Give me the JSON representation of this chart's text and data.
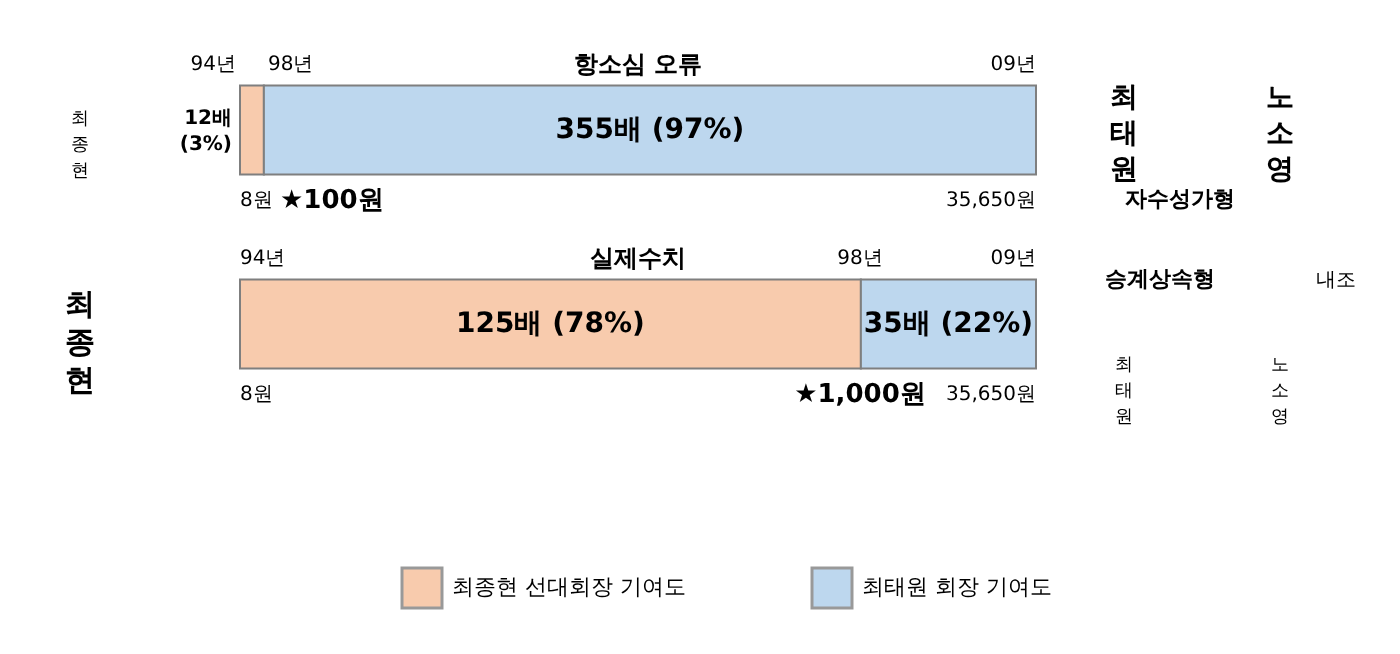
{
  "chart_data": {
    "type": "bar",
    "orientation": "horizontal",
    "stacked": true,
    "categories": [
      null,
      null
    ],
    "xlim": [
      0,
      100
    ],
    "tick_labels": false,
    "legend": "bottom",
    "series": [
      {
        "name": "최종현 선대회장 기여도",
        "color": "#f8cbad",
        "values": [
          3,
          78
        ],
        "value_labels": [
          "12배 (3%)",
          "125배 (78%)"
        ]
      },
      {
        "name": "최태원 회장 기여도",
        "color": "#bdd7ee",
        "values": [
          97,
          22
        ],
        "value_labels": [
          "355배 (97%)",
          "35배 (22%)"
        ]
      }
    ],
    "annotations": [
      "항소심 오류",
      "94년",
      "98년",
      "09년",
      "8원",
      "★100원",
      "35,650원",
      "실제수치",
      "94년",
      "98년",
      "09년",
      "8원",
      "★1,000원",
      "35,650원",
      "최종현",
      "최종현",
      "최태원",
      "노소영",
      "자수성가형",
      "내조",
      "승계상속형",
      "최태원",
      "노소영"
    ]
  }
}
